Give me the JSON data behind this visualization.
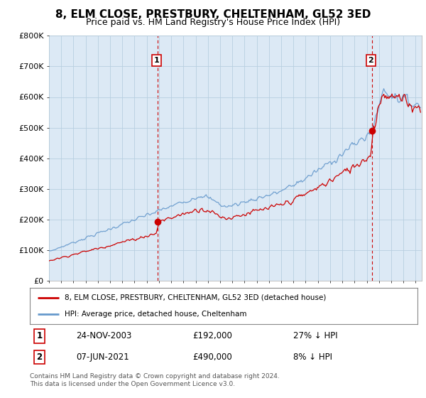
{
  "title": "8, ELM CLOSE, PRESTBURY, CHELTENHAM, GL52 3ED",
  "subtitle": "Price paid vs. HM Land Registry's House Price Index (HPI)",
  "ylim": [
    0,
    800000
  ],
  "yticks": [
    0,
    100000,
    200000,
    300000,
    400000,
    500000,
    600000,
    700000,
    800000
  ],
  "ytick_labels": [
    "£0",
    "£100K",
    "£200K",
    "£300K",
    "£400K",
    "£500K",
    "£600K",
    "£700K",
    "£800K"
  ],
  "xlim_start": 1995.0,
  "xlim_end": 2025.5,
  "sale1_date": 2003.9,
  "sale1_price": 192000,
  "sale1_label": "1",
  "sale2_date": 2021.44,
  "sale2_price": 490000,
  "sale2_label": "2",
  "red_line_color": "#cc0000",
  "blue_line_color": "#6699cc",
  "vline_color": "#cc0000",
  "chart_bg_color": "#dce9f5",
  "legend_red_label": "8, ELM CLOSE, PRESTBURY, CHELTENHAM, GL52 3ED (detached house)",
  "legend_blue_label": "HPI: Average price, detached house, Cheltenham",
  "table_row1": [
    "1",
    "24-NOV-2003",
    "£192,000",
    "27% ↓ HPI"
  ],
  "table_row2": [
    "2",
    "07-JUN-2021",
    "£490,000",
    "8% ↓ HPI"
  ],
  "footer": "Contains HM Land Registry data © Crown copyright and database right 2024.\nThis data is licensed under the Open Government Licence v3.0.",
  "bg_color": "#ffffff",
  "grid_color": "#b8cfe0",
  "title_fontsize": 11,
  "subtitle_fontsize": 9,
  "axis_fontsize": 8
}
